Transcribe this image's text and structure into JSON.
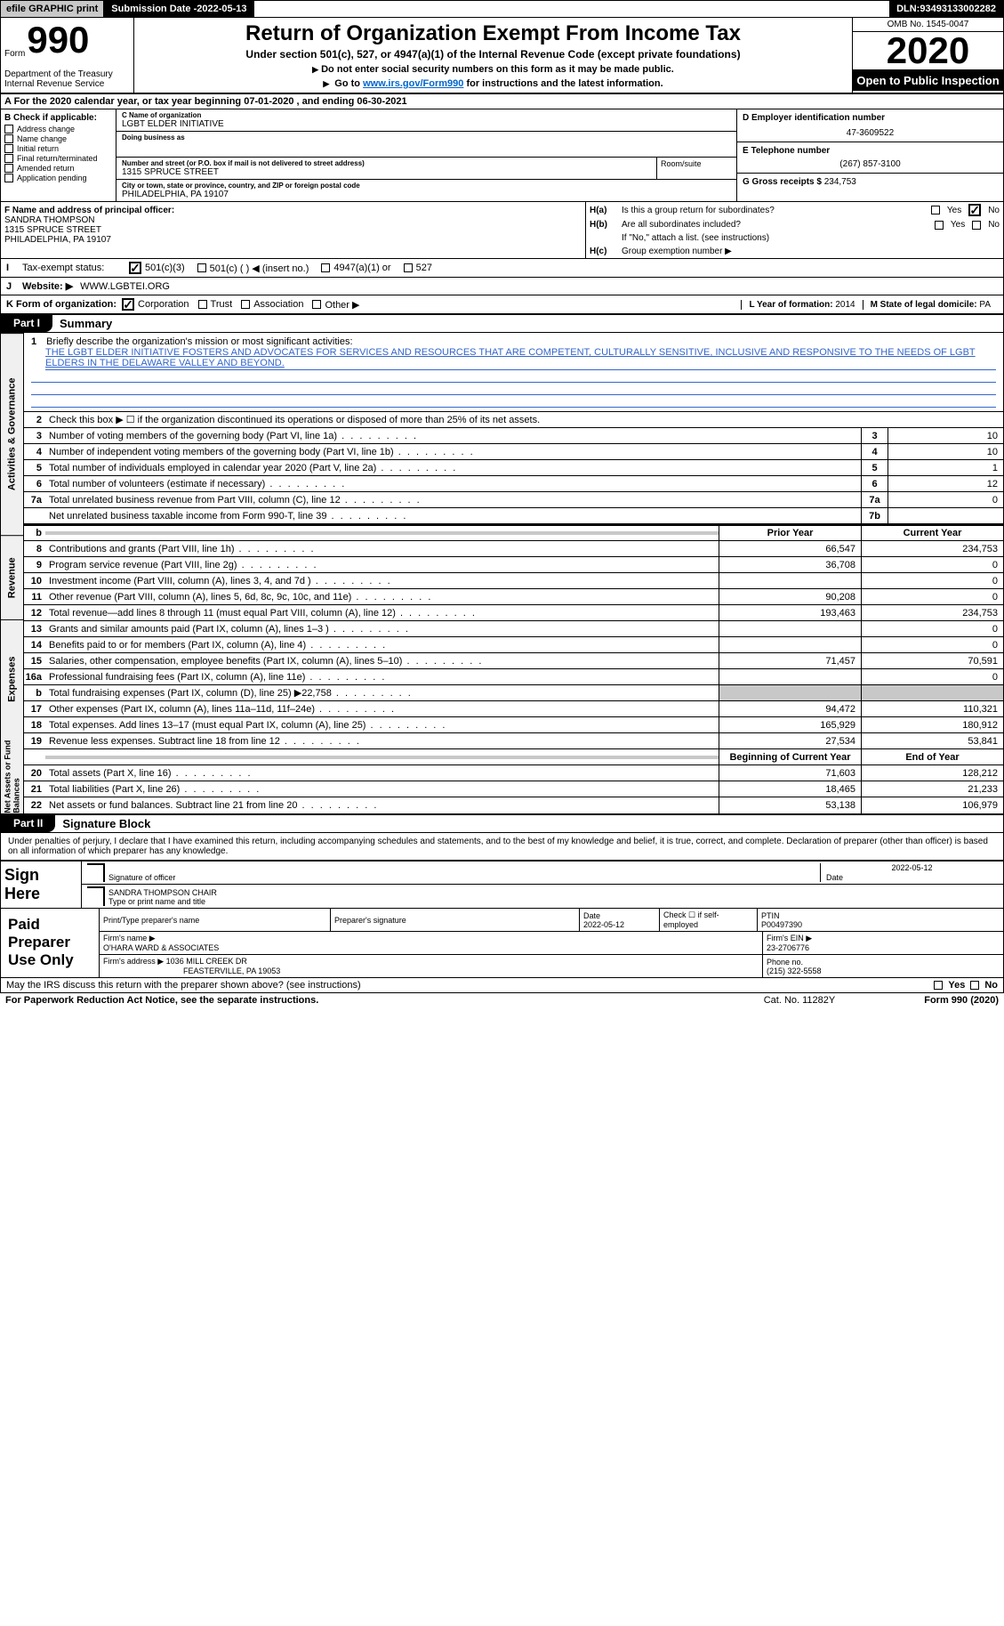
{
  "topbar": {
    "efile": "efile GRAPHIC print",
    "submission_label": "Submission Date - ",
    "submission_date": "2022-05-13",
    "dln_label": "DLN: ",
    "dln": "93493133002282"
  },
  "header": {
    "form_word": "Form",
    "form_num": "990",
    "dept": "Department of the Treasury\nInternal Revenue Service",
    "title": "Return of Organization Exempt From Income Tax",
    "sub1": "Under section 501(c), 527, or 4947(a)(1) of the Internal Revenue Code (except private foundations)",
    "sub2": "Do not enter social security numbers on this form as it may be made public.",
    "sub3_pre": "Go to ",
    "sub3_link": "www.irs.gov/Form990",
    "sub3_post": " for instructions and the latest information.",
    "omb": "OMB No. 1545-0047",
    "year": "2020",
    "open": "Open to Public Inspection"
  },
  "line_a": {
    "pre": "A For the 2020 calendar year, or tax year beginning ",
    "begin": "07-01-2020",
    "mid": " , and ending ",
    "end": "06-30-2021"
  },
  "box_b": {
    "label": "B Check if applicable:",
    "items": [
      "Address change",
      "Name change",
      "Initial return",
      "Final return/terminated",
      "Amended return",
      "Application pending"
    ]
  },
  "box_c": {
    "name_lbl": "C Name of organization",
    "name": "LGBT ELDER INITIATIVE",
    "dba_lbl": "Doing business as",
    "addr_lbl": "Number and street (or P.O. box if mail is not delivered to street address)",
    "addr": "1315 SPRUCE STREET",
    "room_lbl": "Room/suite",
    "city_lbl": "City or town, state or province, country, and ZIP or foreign postal code",
    "city": "PHILADELPHIA, PA  19107"
  },
  "box_d": {
    "lbl": "D Employer identification number",
    "val": "47-3609522"
  },
  "box_e": {
    "lbl": "E Telephone number",
    "val": "(267) 857-3100"
  },
  "box_g": {
    "lbl": "G Gross receipts $ ",
    "val": "234,753"
  },
  "box_f": {
    "lbl": "F Name and address of principal officer:",
    "name": "SANDRA THOMPSON",
    "addr1": "1315 SPRUCE STREET",
    "addr2": "PHILADELPHIA, PA  19107"
  },
  "box_h": {
    "ha_lbl": "H(a)",
    "ha_txt": "Is this a group return for subordinates?",
    "hb_lbl": "H(b)",
    "hb_txt": "Are all subordinates included?",
    "hb_note": "If \"No,\" attach a list. (see instructions)",
    "hc_lbl": "H(c)",
    "hc_txt": "Group exemption number ▶",
    "yes": "Yes",
    "no": "No"
  },
  "line_i": {
    "lbl": "I",
    "txt": "Tax-exempt status:",
    "o1": "501(c)(3)",
    "o2": "501(c) (  ) ◀ (insert no.)",
    "o3": "4947(a)(1) or",
    "o4": "527"
  },
  "line_j": {
    "lbl": "J",
    "txt": "Website: ▶",
    "val": "WWW.LGBTEI.ORG"
  },
  "line_k": {
    "txt": "K Form of organization:",
    "o1": "Corporation",
    "o2": "Trust",
    "o3": "Association",
    "o4": "Other ▶",
    "l_lbl": "L Year of formation: ",
    "l_val": "2014",
    "m_lbl": "M State of legal domicile: ",
    "m_val": "PA"
  },
  "part1": {
    "tab": "Part I",
    "title": "Summary"
  },
  "vtabs": [
    "Activities & Governance",
    "Revenue",
    "Expenses",
    "Net Assets or Fund Balances"
  ],
  "mission": {
    "num": "1",
    "lbl": "Briefly describe the organization's mission or most significant activities:",
    "txt": "THE LGBT ELDER INITIATIVE FOSTERS AND ADVOCATES FOR SERVICES AND RESOURCES THAT ARE COMPETENT, CULTURALLY SENSITIVE, INCLUSIVE AND RESPONSIVE TO THE NEEDS OF LGBT ELDERS IN THE DELAWARE VALLEY AND BEYOND."
  },
  "line2": {
    "num": "2",
    "txt": "Check this box ▶ ☐  if the organization discontinued its operations or disposed of more than 25% of its net assets."
  },
  "gov_rows": [
    {
      "n": "3",
      "d": "Number of voting members of the governing body (Part VI, line 1a)",
      "b": "3",
      "v": "10"
    },
    {
      "n": "4",
      "d": "Number of independent voting members of the governing body (Part VI, line 1b)",
      "b": "4",
      "v": "10"
    },
    {
      "n": "5",
      "d": "Total number of individuals employed in calendar year 2020 (Part V, line 2a)",
      "b": "5",
      "v": "1"
    },
    {
      "n": "6",
      "d": "Total number of volunteers (estimate if necessary)",
      "b": "6",
      "v": "12"
    },
    {
      "n": "7a",
      "d": "Total unrelated business revenue from Part VIII, column (C), line 12",
      "b": "7a",
      "v": "0"
    },
    {
      "n": "",
      "d": "Net unrelated business taxable income from Form 990-T, line 39",
      "b": "7b",
      "v": ""
    }
  ],
  "hdr_prior": "Prior Year",
  "hdr_curr": "Current Year",
  "fin_rows": [
    {
      "sec": "rev",
      "n": "8",
      "d": "Contributions and grants (Part VIII, line 1h)",
      "p": "66,547",
      "c": "234,753"
    },
    {
      "sec": "rev",
      "n": "9",
      "d": "Program service revenue (Part VIII, line 2g)",
      "p": "36,708",
      "c": "0"
    },
    {
      "sec": "rev",
      "n": "10",
      "d": "Investment income (Part VIII, column (A), lines 3, 4, and 7d )",
      "p": "",
      "c": "0"
    },
    {
      "sec": "rev",
      "n": "11",
      "d": "Other revenue (Part VIII, column (A), lines 5, 6d, 8c, 9c, 10c, and 11e)",
      "p": "90,208",
      "c": "0"
    },
    {
      "sec": "rev",
      "n": "12",
      "d": "Total revenue—add lines 8 through 11 (must equal Part VIII, column (A), line 12)",
      "p": "193,463",
      "c": "234,753"
    },
    {
      "sec": "exp",
      "n": "13",
      "d": "Grants and similar amounts paid (Part IX, column (A), lines 1–3 )",
      "p": "",
      "c": "0"
    },
    {
      "sec": "exp",
      "n": "14",
      "d": "Benefits paid to or for members (Part IX, column (A), line 4)",
      "p": "",
      "c": "0"
    },
    {
      "sec": "exp",
      "n": "15",
      "d": "Salaries, other compensation, employee benefits (Part IX, column (A), lines 5–10)",
      "p": "71,457",
      "c": "70,591"
    },
    {
      "sec": "exp",
      "n": "16a",
      "d": "Professional fundraising fees (Part IX, column (A), line 11e)",
      "p": "",
      "c": "0"
    },
    {
      "sec": "exp",
      "n": "b",
      "d": "Total fundraising expenses (Part IX, column (D), line 25) ▶22,758",
      "p": "SHADE",
      "c": "SHADE"
    },
    {
      "sec": "exp",
      "n": "17",
      "d": "Other expenses (Part IX, column (A), lines 11a–11d, 11f–24e)",
      "p": "94,472",
      "c": "110,321"
    },
    {
      "sec": "exp",
      "n": "18",
      "d": "Total expenses. Add lines 13–17 (must equal Part IX, column (A), line 25)",
      "p": "165,929",
      "c": "180,912"
    },
    {
      "sec": "exp",
      "n": "19",
      "d": "Revenue less expenses. Subtract line 18 from line 12",
      "p": "27,534",
      "c": "53,841"
    }
  ],
  "hdr_begin": "Beginning of Current Year",
  "hdr_end": "End of Year",
  "net_rows": [
    {
      "n": "20",
      "d": "Total assets (Part X, line 16)",
      "p": "71,603",
      "c": "128,212"
    },
    {
      "n": "21",
      "d": "Total liabilities (Part X, line 26)",
      "p": "18,465",
      "c": "21,233"
    },
    {
      "n": "22",
      "d": "Net assets or fund balances. Subtract line 21 from line 20",
      "p": "53,138",
      "c": "106,979"
    }
  ],
  "part2": {
    "tab": "Part II",
    "title": "Signature Block"
  },
  "sig_decl": "Under penalties of perjury, I declare that I have examined this return, including accompanying schedules and statements, and to the best of my knowledge and belief, it is true, correct, and complete. Declaration of preparer (other than officer) is based on all information of which preparer has any knowledge.",
  "sign": {
    "here": "Sign Here",
    "sig_lbl": "Signature of officer",
    "date_lbl": "Date",
    "date": "2022-05-12",
    "name": "SANDRA THOMPSON  CHAIR",
    "name_lbl": "Type or print name and title"
  },
  "prep": {
    "title": "Paid Preparer Use Only",
    "r1": {
      "c1_lbl": "Print/Type preparer's name",
      "c1": "",
      "c2_lbl": "Preparer's signature",
      "c2": "",
      "c3_lbl": "Date",
      "c3": "2022-05-12",
      "c4_lbl": "Check ☐ if self-employed",
      "c5_lbl": "PTIN",
      "c5": "P00497390"
    },
    "r2": {
      "lbl": "Firm's name    ▶",
      "val": "O'HARA WARD & ASSOCIATES",
      "ein_lbl": "Firm's EIN ▶",
      "ein": "23-2706776"
    },
    "r3": {
      "lbl": "Firm's address ▶",
      "val": "1036 MILL CREEK DR",
      "val2": "FEASTERVILLE, PA  19053",
      "ph_lbl": "Phone no. ",
      "ph": "(215) 322-5558"
    }
  },
  "discuss": {
    "txt": "May the IRS discuss this return with the preparer shown above? (see instructions)",
    "yes": "Yes",
    "no": "No"
  },
  "footer": {
    "left": "For Paperwork Reduction Act Notice, see the separate instructions.",
    "mid": "Cat. No. 11282Y",
    "right": "Form 990 (2020)"
  },
  "colors": {
    "link": "#0066cc",
    "shade": "#c8c8c8",
    "underline": "#3366cc"
  }
}
